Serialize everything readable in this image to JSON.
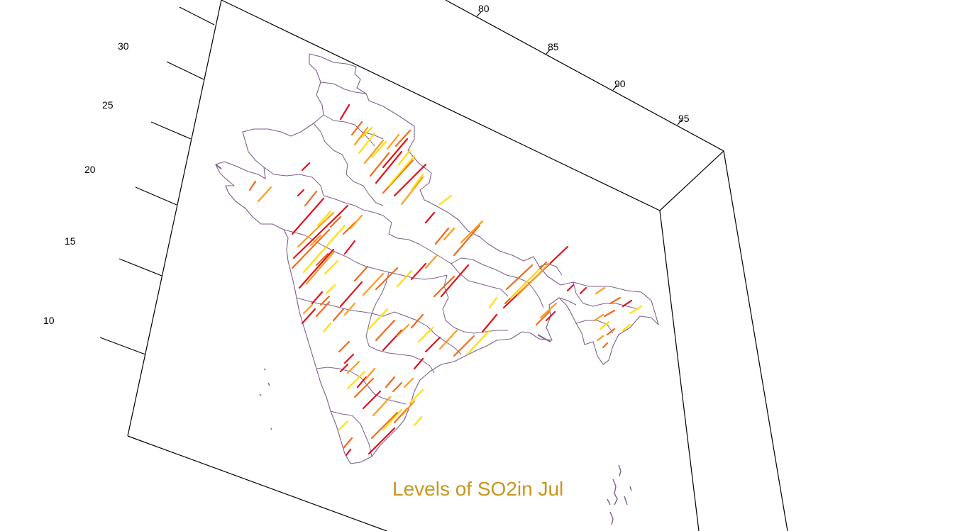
{
  "title": "Levels of SO2in Jul",
  "title_color": "#c8961e",
  "colors": {
    "border": "#7d5f8a",
    "axis": "#000000",
    "low": "#ffe000",
    "mid": "#ff9a18",
    "high": "#f26a1a",
    "very_high": "#e0121c"
  },
  "axes": {
    "longitude": {
      "ticks": [
        "80",
        "85",
        "90",
        "95"
      ]
    },
    "latitude": {
      "ticks": [
        "30",
        "25",
        "20",
        "15",
        "10"
      ]
    }
  },
  "map_regions": [
    "india-outline",
    "state-borders",
    "andaman-islands",
    "lakshadweep-islands"
  ],
  "so2_levels": [
    "low",
    "mid",
    "high",
    "very_high"
  ]
}
